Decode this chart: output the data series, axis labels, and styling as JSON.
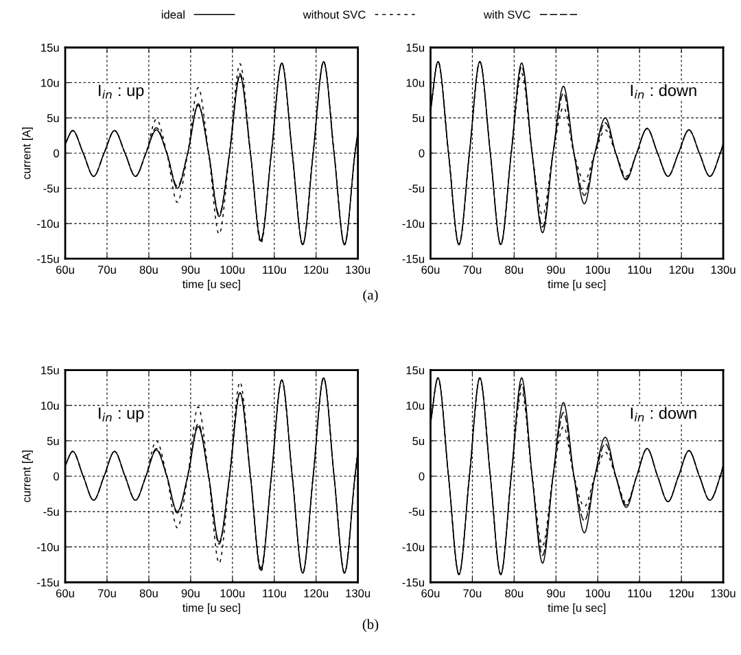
{
  "chart_data": [
    {
      "type": "line",
      "xlabel": "time [u sec]",
      "ylabel": "current [A]",
      "grid": true,
      "legend": "top",
      "annotations": [
        "I$_{in}$ : up",
        "(a)"
      ],
      "x": [
        60,
        61.8,
        64.3,
        66.8,
        69.3,
        71.8,
        74.3,
        76.8,
        79.3,
        81.8,
        84.3,
        86.8,
        89.3,
        91.8,
        94.3,
        96.8,
        99.3,
        101.8,
        104.3,
        106.8,
        109.3,
        111.8,
        114.3,
        116.8,
        119.3,
        121.8,
        124.3,
        126.8,
        129.3,
        130
      ],
      "xlim": [
        60,
        130
      ],
      "xticks": [
        {
          "value": 60,
          "label": "60u"
        },
        {
          "value": 70,
          "label": "70u"
        },
        {
          "value": 80,
          "label": "80u"
        },
        {
          "value": 90,
          "label": "90u"
        },
        {
          "value": 100,
          "label": "100u"
        },
        {
          "value": 110,
          "label": "110u"
        },
        {
          "value": 120,
          "label": "120u"
        },
        {
          "value": 130,
          "label": "130u"
        }
      ],
      "ylim": [
        -15,
        15
      ],
      "yticks": [
        {
          "value": -15,
          "label": "-15u"
        },
        {
          "value": -10,
          "label": "-10u"
        },
        {
          "value": -5,
          "label": "-5u"
        },
        0,
        {
          "value": 5,
          "label": "5u"
        },
        {
          "value": 10,
          "label": "10u"
        },
        {
          "value": 15,
          "label": "15u"
        }
      ],
      "series": [
        {
          "name": "ideal",
          "color": "#000000",
          "line_style": "solid",
          "values": [
            1.3,
            3.2,
            0,
            -3.3,
            0,
            3.2,
            0,
            -3.3,
            0,
            3.3,
            0,
            -5.0,
            0,
            6.8,
            0,
            -9.0,
            0,
            11.0,
            0,
            -12.5,
            0,
            12.8,
            0,
            -13.0,
            0,
            13.0,
            0,
            -13.0,
            0,
            3.0
          ]
        },
        {
          "name": "without SVC",
          "color": "#000000",
          "line_style": "dashed",
          "values": [
            1.3,
            3.2,
            0,
            -3.3,
            0,
            3.2,
            0,
            -3.3,
            0,
            4.8,
            0,
            -7.0,
            0,
            9.3,
            0,
            -11.5,
            0,
            12.7,
            0,
            -12.8,
            0,
            12.8,
            0,
            -13.0,
            0,
            13.0,
            0,
            -13.0,
            0,
            3.0
          ]
        },
        {
          "name": "with SVC",
          "color": "#000000",
          "line_style": "dashed",
          "values": [
            1.3,
            3.2,
            0,
            -3.3,
            0,
            3.2,
            0,
            -3.3,
            0,
            3.6,
            0,
            -4.7,
            0,
            7.0,
            0,
            -8.7,
            0,
            11.3,
            0,
            -12.3,
            0,
            12.8,
            0,
            -13.0,
            0,
            13.0,
            0,
            -13.0,
            0,
            3.0
          ]
        }
      ]
    },
    {
      "type": "line",
      "xlabel": "time [u sec]",
      "grid": true,
      "annotations": [
        "I$_{in}$ : down"
      ],
      "x": [
        60,
        61.8,
        64.3,
        66.8,
        69.3,
        71.8,
        74.3,
        76.8,
        79.3,
        81.8,
        84.3,
        86.8,
        89.3,
        91.8,
        94.3,
        96.8,
        99.3,
        101.8,
        104.3,
        106.8,
        109.3,
        111.8,
        114.3,
        116.8,
        119.3,
        121.8,
        124.3,
        126.8,
        129.3,
        130
      ],
      "xlim": [
        60,
        130
      ],
      "xticks": [
        {
          "value": 60,
          "label": "60u"
        },
        {
          "value": 70,
          "label": "70u"
        },
        {
          "value": 80,
          "label": "80u"
        },
        {
          "value": 90,
          "label": "90u"
        },
        {
          "value": 100,
          "label": "100u"
        },
        {
          "value": 110,
          "label": "110u"
        },
        {
          "value": 120,
          "label": "120u"
        },
        {
          "value": 130,
          "label": "130u"
        }
      ],
      "ylim": [
        -15,
        15
      ],
      "yticks": [
        {
          "value": -15,
          "label": "-15u"
        },
        {
          "value": -10,
          "label": "-10u"
        },
        {
          "value": -5,
          "label": "-5u"
        },
        0,
        {
          "value": 5,
          "label": "5u"
        },
        {
          "value": 10,
          "label": "10u"
        },
        {
          "value": 15,
          "label": "15u"
        }
      ],
      "series": [
        {
          "color": "#000000",
          "line_style": "solid",
          "values": [
            6.0,
            13.0,
            0,
            -13.0,
            0,
            13.0,
            0,
            -13.0,
            0,
            12.8,
            0,
            -11.3,
            0,
            9.5,
            0,
            -7.2,
            0,
            5.0,
            0,
            -3.8,
            0,
            3.5,
            0,
            -3.3,
            0,
            3.3,
            0,
            -3.3,
            0,
            1.3
          ]
        },
        {
          "color": "#000000",
          "line_style": "dashed",
          "values": [
            6.0,
            13.0,
            0,
            -13.0,
            0,
            13.0,
            0,
            -13.0,
            0,
            11.3,
            0,
            -8.8,
            0,
            6.5,
            0,
            -4.0,
            0,
            3.3,
            0,
            -3.3,
            0,
            3.5,
            0,
            -3.3,
            0,
            3.3,
            0,
            -3.3,
            0,
            1.3
          ]
        },
        {
          "color": "#000000",
          "line_style": "dashed",
          "values": [
            6.0,
            13.0,
            0,
            -13.0,
            0,
            13.0,
            0,
            -13.0,
            0,
            12.3,
            0,
            -10.5,
            0,
            8.5,
            0,
            -6.0,
            0,
            4.3,
            0,
            -3.6,
            0,
            3.5,
            0,
            -3.3,
            0,
            3.3,
            0,
            -3.3,
            0,
            1.3
          ]
        }
      ]
    },
    {
      "type": "line",
      "xlabel": "time [u sec]",
      "ylabel": "current [A]",
      "grid": true,
      "annotations": [
        "I$_{in}$ : up",
        "(b)"
      ],
      "x": [
        60,
        61.8,
        64.3,
        66.8,
        69.3,
        71.8,
        74.3,
        76.8,
        79.3,
        81.8,
        84.3,
        86.8,
        89.3,
        91.8,
        94.3,
        96.8,
        99.3,
        101.8,
        104.3,
        106.8,
        109.3,
        111.8,
        114.3,
        116.8,
        119.3,
        121.8,
        124.3,
        126.8,
        129.3,
        130
      ],
      "xlim": [
        60,
        130
      ],
      "xticks": [
        {
          "value": 60,
          "label": "60u"
        },
        {
          "value": 70,
          "label": "70u"
        },
        {
          "value": 80,
          "label": "80u"
        },
        {
          "value": 90,
          "label": "90u"
        },
        {
          "value": 100,
          "label": "100u"
        },
        {
          "value": 110,
          "label": "110u"
        },
        {
          "value": 120,
          "label": "120u"
        },
        {
          "value": 130,
          "label": "130u"
        }
      ],
      "ylim": [
        -15,
        15
      ],
      "yticks": [
        {
          "value": -15,
          "label": "-15u"
        },
        {
          "value": -10,
          "label": "-10u"
        },
        {
          "value": -5,
          "label": "-5u"
        },
        0,
        {
          "value": 5,
          "label": "5u"
        },
        {
          "value": 10,
          "label": "10u"
        },
        {
          "value": 15,
          "label": "15u"
        }
      ],
      "series": [
        {
          "color": "#000000",
          "line_style": "solid",
          "values": [
            1.5,
            3.5,
            0,
            -3.4,
            0,
            3.5,
            0,
            -3.4,
            0,
            3.7,
            0,
            -5.0,
            0,
            7.0,
            0,
            -9.3,
            0,
            11.8,
            0,
            -13.3,
            0,
            13.6,
            0,
            -13.7,
            0,
            13.9,
            0,
            -13.7,
            0,
            3.5
          ]
        },
        {
          "color": "#000000",
          "line_style": "dashed",
          "values": [
            1.5,
            3.5,
            0,
            -3.4,
            0,
            3.5,
            0,
            -3.4,
            0,
            5.0,
            0,
            -7.3,
            0,
            9.8,
            0,
            -12.3,
            0,
            13.3,
            0,
            -13.5,
            0,
            13.6,
            0,
            -13.7,
            0,
            13.9,
            0,
            -13.7,
            0,
            3.5
          ]
        },
        {
          "color": "#000000",
          "line_style": "dashed",
          "values": [
            1.5,
            3.5,
            0,
            -3.4,
            0,
            3.5,
            0,
            -3.4,
            0,
            3.9,
            0,
            -5.2,
            0,
            7.4,
            0,
            -9.6,
            0,
            11.8,
            0,
            -13.0,
            0,
            13.6,
            0,
            -13.7,
            0,
            13.9,
            0,
            -13.7,
            0,
            3.5
          ]
        }
      ]
    },
    {
      "type": "line",
      "xlabel": "time [u sec]",
      "grid": true,
      "annotations": [
        "I$_{in}$ : down"
      ],
      "x": [
        60,
        61.8,
        64.3,
        66.8,
        69.3,
        71.8,
        74.3,
        76.8,
        79.3,
        81.8,
        84.3,
        86.8,
        89.3,
        91.8,
        94.3,
        96.8,
        99.3,
        101.8,
        104.3,
        106.8,
        109.3,
        111.8,
        114.3,
        116.8,
        119.3,
        121.8,
        124.3,
        126.8,
        129.3,
        130
      ],
      "xlim": [
        60,
        130
      ],
      "xticks": [
        {
          "value": 60,
          "label": "60u"
        },
        {
          "value": 70,
          "label": "70u"
        },
        {
          "value": 80,
          "label": "80u"
        },
        {
          "value": 90,
          "label": "90u"
        },
        {
          "value": 100,
          "label": "100u"
        },
        {
          "value": 110,
          "label": "110u"
        },
        {
          "value": 120,
          "label": "120u"
        },
        {
          "value": 130,
          "label": "130u"
        }
      ],
      "ylim": [
        -15,
        15
      ],
      "yticks": [
        {
          "value": -15,
          "label": "-15u"
        },
        {
          "value": -10,
          "label": "-10u"
        },
        {
          "value": -5,
          "label": "-5u"
        },
        0,
        {
          "value": 5,
          "label": "5u"
        },
        {
          "value": 10,
          "label": "10u"
        },
        {
          "value": 15,
          "label": "15u"
        }
      ],
      "series": [
        {
          "color": "#000000",
          "line_style": "solid",
          "values": [
            7.5,
            13.9,
            0,
            -13.9,
            0,
            13.9,
            0,
            -13.9,
            0,
            13.9,
            0,
            -12.3,
            0,
            10.4,
            0,
            -8.0,
            0,
            5.5,
            0,
            -4.4,
            0,
            3.9,
            0,
            -3.6,
            0,
            3.6,
            0,
            -3.4,
            0,
            1.5
          ]
        },
        {
          "color": "#000000",
          "line_style": "dashed",
          "values": [
            7.5,
            13.9,
            0,
            -13.9,
            0,
            13.9,
            0,
            -13.9,
            0,
            12.0,
            0,
            -9.8,
            0,
            7.0,
            0,
            -4.3,
            0,
            3.4,
            0,
            -3.8,
            0,
            3.9,
            0,
            -3.6,
            0,
            3.6,
            0,
            -3.4,
            0,
            1.5
          ]
        },
        {
          "color": "#000000",
          "line_style": "dashed",
          "values": [
            7.5,
            13.9,
            0,
            -13.9,
            0,
            13.9,
            0,
            -13.9,
            0,
            13.0,
            0,
            -11.2,
            0,
            9.0,
            0,
            -6.3,
            0,
            4.6,
            0,
            -4.1,
            0,
            3.9,
            0,
            -3.6,
            0,
            3.6,
            0,
            -3.4,
            0,
            1.5
          ]
        }
      ]
    }
  ]
}
